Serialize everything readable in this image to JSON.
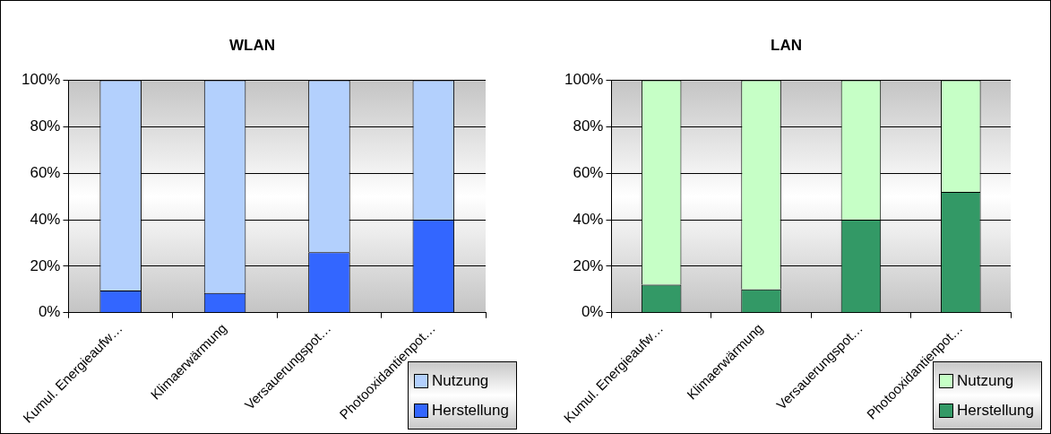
{
  "chart_data": [
    {
      "type": "bar",
      "title": "WLAN",
      "categories": [
        "Kumul. Energieaufw…",
        "Klimaerwärmung",
        "Versauerungspot…",
        "Photooxidantienpot…"
      ],
      "stacked": true,
      "series": [
        {
          "name": "Herstellung",
          "color": "#3366ff",
          "values": [
            9.5,
            8.5,
            26,
            40
          ]
        },
        {
          "name": "Nutzung",
          "color": "#b3d0fd",
          "values": [
            90.5,
            91.5,
            74,
            60
          ]
        }
      ],
      "ylim": [
        0,
        100
      ],
      "yticks": [
        {
          "value": 0,
          "label": "0%"
        },
        {
          "value": 20,
          "label": "20%"
        },
        {
          "value": 40,
          "label": "40%"
        },
        {
          "value": 60,
          "label": "60%"
        },
        {
          "value": 80,
          "label": "80%"
        },
        {
          "value": 100,
          "label": "100%"
        }
      ],
      "grid": "y",
      "legend": "bottom right"
    },
    {
      "type": "bar",
      "title": "LAN",
      "categories": [
        "Kumul. Energieaufw…",
        "Klimaerwärmung",
        "Versauerungspot…",
        "Photooxidantienpot…"
      ],
      "stacked": true,
      "series": [
        {
          "name": "Herstellung",
          "color": "#339966",
          "values": [
            12,
            10,
            40,
            52
          ]
        },
        {
          "name": "Nutzung",
          "color": "#c6ffc6",
          "values": [
            88,
            90,
            60,
            48
          ]
        }
      ],
      "ylim": [
        0,
        100
      ],
      "yticks": [
        {
          "value": 0,
          "label": "0%"
        },
        {
          "value": 20,
          "label": "20%"
        },
        {
          "value": 40,
          "label": "40%"
        },
        {
          "value": 60,
          "label": "60%"
        },
        {
          "value": 80,
          "label": "80%"
        },
        {
          "value": 100,
          "label": "100%"
        }
      ],
      "grid": "y",
      "legend": "bottom right"
    }
  ]
}
